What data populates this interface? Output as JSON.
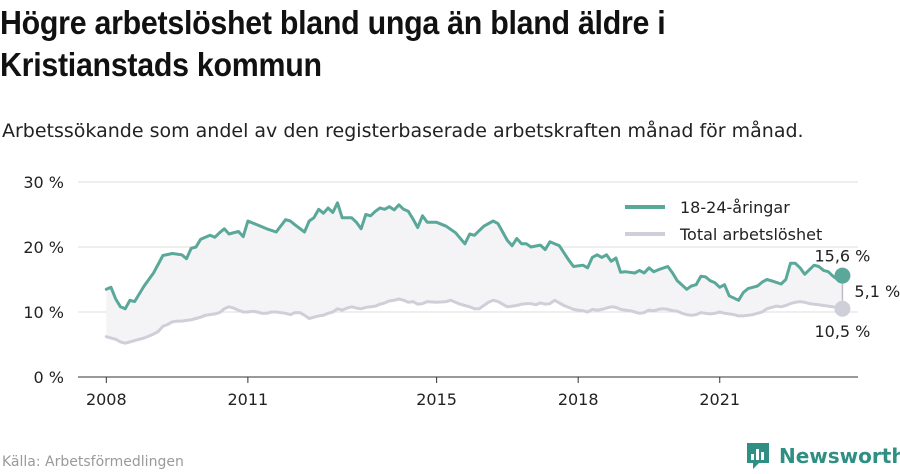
{
  "header": {
    "title": "Högre arbetslöshet bland unga än bland äldre i Kristianstads kommun",
    "subtitle": "Arbetssökande som andel av den registerbaserade arbetskraften månad för månad."
  },
  "footer": {
    "source": "Källa: Arbetsförmedlingen",
    "brand": "Newsworthy"
  },
  "colors": {
    "youth": "#5aa89a",
    "total": "#cfcfd9",
    "fill": "#f4f4f6",
    "brand": "#2e8f82"
  },
  "chart_data": {
    "type": "line",
    "xlabel": "",
    "ylabel": "",
    "ylim": [
      0,
      30
    ],
    "y_ticks": [
      "0 %",
      "10 %",
      "20 %",
      "30 %"
    ],
    "x_ticks": [
      "2008",
      "2011",
      "2015",
      "2018",
      "2021"
    ],
    "grid": true,
    "legend_position": "top-right",
    "series": [
      {
        "name": "18-24-åringar",
        "color": "#5aa89a",
        "points": [
          [
            2008.0,
            13.5
          ],
          [
            2008.1,
            13.8
          ],
          [
            2008.2,
            12.0
          ],
          [
            2008.3,
            10.8
          ],
          [
            2008.4,
            10.5
          ],
          [
            2008.5,
            11.8
          ],
          [
            2008.6,
            11.6
          ],
          [
            2008.8,
            14.0
          ],
          [
            2009.0,
            16.0
          ],
          [
            2009.2,
            18.7
          ],
          [
            2009.4,
            19.0
          ],
          [
            2009.6,
            18.8
          ],
          [
            2009.7,
            18.2
          ],
          [
            2009.8,
            19.8
          ],
          [
            2009.9,
            20.0
          ],
          [
            2010.0,
            21.2
          ],
          [
            2010.2,
            21.8
          ],
          [
            2010.3,
            21.5
          ],
          [
            2010.4,
            22.2
          ],
          [
            2010.5,
            22.8
          ],
          [
            2010.6,
            22.0
          ],
          [
            2010.8,
            22.4
          ],
          [
            2010.9,
            21.6
          ],
          [
            2011.0,
            24.0
          ],
          [
            2011.2,
            23.4
          ],
          [
            2011.4,
            22.8
          ],
          [
            2011.6,
            22.3
          ],
          [
            2011.8,
            24.2
          ],
          [
            2011.9,
            24.0
          ],
          [
            2012.0,
            23.4
          ],
          [
            2012.2,
            22.3
          ],
          [
            2012.3,
            24.0
          ],
          [
            2012.4,
            24.5
          ],
          [
            2012.5,
            25.8
          ],
          [
            2012.6,
            25.2
          ],
          [
            2012.7,
            26.0
          ],
          [
            2012.8,
            25.3
          ],
          [
            2012.9,
            26.8
          ],
          [
            2013.0,
            24.5
          ],
          [
            2013.2,
            24.5
          ],
          [
            2013.3,
            23.8
          ],
          [
            2013.4,
            22.8
          ],
          [
            2013.5,
            25.0
          ],
          [
            2013.6,
            24.8
          ],
          [
            2013.7,
            25.5
          ],
          [
            2013.8,
            26.0
          ],
          [
            2013.9,
            25.8
          ],
          [
            2014.0,
            26.2
          ],
          [
            2014.1,
            25.7
          ],
          [
            2014.2,
            26.5
          ],
          [
            2014.3,
            25.8
          ],
          [
            2014.4,
            25.5
          ],
          [
            2014.5,
            24.3
          ],
          [
            2014.6,
            23.0
          ],
          [
            2014.7,
            24.8
          ],
          [
            2014.8,
            23.8
          ],
          [
            2015.0,
            23.8
          ],
          [
            2015.2,
            23.2
          ],
          [
            2015.4,
            22.2
          ],
          [
            2015.6,
            20.5
          ],
          [
            2015.7,
            22.0
          ],
          [
            2015.8,
            21.8
          ],
          [
            2016.0,
            23.2
          ],
          [
            2016.2,
            24.0
          ],
          [
            2016.3,
            23.6
          ],
          [
            2016.5,
            21.0
          ],
          [
            2016.6,
            20.2
          ],
          [
            2016.7,
            21.3
          ],
          [
            2016.8,
            20.5
          ],
          [
            2016.9,
            20.5
          ],
          [
            2017.0,
            20.0
          ],
          [
            2017.2,
            20.3
          ],
          [
            2017.3,
            19.6
          ],
          [
            2017.4,
            20.8
          ],
          [
            2017.5,
            20.5
          ],
          [
            2017.6,
            20.2
          ],
          [
            2017.8,
            18.0
          ],
          [
            2017.9,
            17.0
          ],
          [
            2018.1,
            17.2
          ],
          [
            2018.2,
            16.8
          ],
          [
            2018.3,
            18.4
          ],
          [
            2018.4,
            18.8
          ],
          [
            2018.5,
            18.4
          ],
          [
            2018.6,
            18.8
          ],
          [
            2018.7,
            17.8
          ],
          [
            2018.8,
            18.3
          ],
          [
            2018.9,
            16.1
          ],
          [
            2019.0,
            16.2
          ],
          [
            2019.2,
            16.0
          ],
          [
            2019.3,
            16.4
          ],
          [
            2019.4,
            16.0
          ],
          [
            2019.5,
            16.8
          ],
          [
            2019.6,
            16.2
          ],
          [
            2019.7,
            16.5
          ],
          [
            2019.9,
            17.0
          ],
          [
            2020.0,
            16.0
          ],
          [
            2020.1,
            14.8
          ],
          [
            2020.3,
            13.5
          ],
          [
            2020.4,
            14.0
          ],
          [
            2020.5,
            14.2
          ],
          [
            2020.6,
            15.5
          ],
          [
            2020.7,
            15.4
          ],
          [
            2020.8,
            14.8
          ],
          [
            2020.9,
            14.5
          ],
          [
            2021.0,
            13.8
          ],
          [
            2021.1,
            14.2
          ],
          [
            2021.2,
            12.5
          ],
          [
            2021.4,
            11.8
          ],
          [
            2021.5,
            13.0
          ],
          [
            2021.6,
            13.6
          ],
          [
            2021.7,
            13.8
          ],
          [
            2021.8,
            14.0
          ],
          [
            2021.9,
            14.6
          ],
          [
            2022.0,
            15.0
          ],
          [
            2022.1,
            14.8
          ],
          [
            2022.3,
            14.3
          ],
          [
            2022.4,
            15.0
          ],
          [
            2022.5,
            17.5
          ],
          [
            2022.6,
            17.5
          ],
          [
            2022.7,
            16.8
          ],
          [
            2022.8,
            15.8
          ],
          [
            2022.9,
            16.5
          ],
          [
            2023.0,
            17.2
          ],
          [
            2023.1,
            17.0
          ],
          [
            2023.2,
            16.4
          ],
          [
            2023.3,
            16.2
          ],
          [
            2023.4,
            15.5
          ],
          [
            2023.5,
            15.0
          ],
          [
            2023.6,
            15.6
          ]
        ]
      },
      {
        "name": "Total arbetslöshet",
        "color": "#cfcfd9",
        "points": [
          [
            2008.0,
            6.2
          ],
          [
            2008.1,
            6.0
          ],
          [
            2008.2,
            5.8
          ],
          [
            2008.3,
            5.4
          ],
          [
            2008.4,
            5.2
          ],
          [
            2008.5,
            5.4
          ],
          [
            2008.6,
            5.6
          ],
          [
            2008.8,
            6.0
          ],
          [
            2008.9,
            6.3
          ],
          [
            2009.0,
            6.6
          ],
          [
            2009.1,
            7.0
          ],
          [
            2009.2,
            7.8
          ],
          [
            2009.3,
            8.1
          ],
          [
            2009.4,
            8.5
          ],
          [
            2009.5,
            8.6
          ],
          [
            2009.6,
            8.6
          ],
          [
            2009.7,
            8.7
          ],
          [
            2009.8,
            8.8
          ],
          [
            2009.9,
            9.0
          ],
          [
            2010.0,
            9.2
          ],
          [
            2010.1,
            9.5
          ],
          [
            2010.2,
            9.6
          ],
          [
            2010.3,
            9.7
          ],
          [
            2010.4,
            9.9
          ],
          [
            2010.5,
            10.5
          ],
          [
            2010.6,
            10.8
          ],
          [
            2010.7,
            10.6
          ],
          [
            2010.8,
            10.3
          ],
          [
            2010.9,
            10.0
          ],
          [
            2011.0,
            10.0
          ],
          [
            2011.1,
            10.1
          ],
          [
            2011.2,
            10.0
          ],
          [
            2011.3,
            9.8
          ],
          [
            2011.4,
            9.8
          ],
          [
            2011.5,
            10.0
          ],
          [
            2011.6,
            10.0
          ],
          [
            2011.8,
            9.8
          ],
          [
            2011.9,
            9.6
          ],
          [
            2012.0,
            9.9
          ],
          [
            2012.1,
            9.9
          ],
          [
            2012.2,
            9.5
          ],
          [
            2012.3,
            9.0
          ],
          [
            2012.4,
            9.2
          ],
          [
            2012.5,
            9.4
          ],
          [
            2012.6,
            9.5
          ],
          [
            2012.7,
            9.8
          ],
          [
            2012.8,
            10.0
          ],
          [
            2012.9,
            10.5
          ],
          [
            2013.0,
            10.3
          ],
          [
            2013.1,
            10.6
          ],
          [
            2013.2,
            10.8
          ],
          [
            2013.3,
            10.6
          ],
          [
            2013.4,
            10.5
          ],
          [
            2013.5,
            10.7
          ],
          [
            2013.6,
            10.8
          ],
          [
            2013.7,
            10.9
          ],
          [
            2013.8,
            11.2
          ],
          [
            2013.9,
            11.4
          ],
          [
            2014.0,
            11.7
          ],
          [
            2014.1,
            11.8
          ],
          [
            2014.2,
            12.0
          ],
          [
            2014.3,
            11.8
          ],
          [
            2014.4,
            11.5
          ],
          [
            2014.5,
            11.6
          ],
          [
            2014.6,
            11.2
          ],
          [
            2014.7,
            11.3
          ],
          [
            2014.8,
            11.6
          ],
          [
            2015.0,
            11.5
          ],
          [
            2015.2,
            11.6
          ],
          [
            2015.3,
            11.8
          ],
          [
            2015.4,
            11.5
          ],
          [
            2015.5,
            11.2
          ],
          [
            2015.6,
            11.0
          ],
          [
            2015.7,
            10.8
          ],
          [
            2015.8,
            10.5
          ],
          [
            2015.9,
            10.5
          ],
          [
            2016.0,
            11.0
          ],
          [
            2016.1,
            11.5
          ],
          [
            2016.2,
            11.8
          ],
          [
            2016.3,
            11.6
          ],
          [
            2016.4,
            11.2
          ],
          [
            2016.5,
            10.8
          ],
          [
            2016.6,
            10.9
          ],
          [
            2016.7,
            11.0
          ],
          [
            2016.8,
            11.2
          ],
          [
            2016.9,
            11.3
          ],
          [
            2017.0,
            11.3
          ],
          [
            2017.1,
            11.1
          ],
          [
            2017.2,
            11.4
          ],
          [
            2017.3,
            11.2
          ],
          [
            2017.4,
            11.3
          ],
          [
            2017.5,
            11.8
          ],
          [
            2017.6,
            11.4
          ],
          [
            2017.7,
            11.0
          ],
          [
            2017.8,
            10.7
          ],
          [
            2017.9,
            10.4
          ],
          [
            2018.0,
            10.3
          ],
          [
            2018.1,
            10.2
          ],
          [
            2018.2,
            10.0
          ],
          [
            2018.3,
            10.4
          ],
          [
            2018.4,
            10.3
          ],
          [
            2018.5,
            10.4
          ],
          [
            2018.6,
            10.6
          ],
          [
            2018.7,
            10.8
          ],
          [
            2018.8,
            10.7
          ],
          [
            2018.9,
            10.4
          ],
          [
            2019.0,
            10.3
          ],
          [
            2019.1,
            10.2
          ],
          [
            2019.2,
            10.0
          ],
          [
            2019.3,
            9.8
          ],
          [
            2019.4,
            9.9
          ],
          [
            2019.5,
            10.3
          ],
          [
            2019.6,
            10.2
          ],
          [
            2019.7,
            10.4
          ],
          [
            2019.8,
            10.5
          ],
          [
            2019.9,
            10.4
          ],
          [
            2020.0,
            10.2
          ],
          [
            2020.1,
            10.1
          ],
          [
            2020.2,
            9.8
          ],
          [
            2020.3,
            9.6
          ],
          [
            2020.4,
            9.5
          ],
          [
            2020.5,
            9.6
          ],
          [
            2020.6,
            9.9
          ],
          [
            2020.7,
            9.8
          ],
          [
            2020.8,
            9.7
          ],
          [
            2020.9,
            9.8
          ],
          [
            2021.0,
            10.0
          ],
          [
            2021.1,
            9.8
          ],
          [
            2021.2,
            9.7
          ],
          [
            2021.3,
            9.6
          ],
          [
            2021.4,
            9.4
          ],
          [
            2021.5,
            9.4
          ],
          [
            2021.6,
            9.5
          ],
          [
            2021.7,
            9.6
          ],
          [
            2021.8,
            9.8
          ],
          [
            2021.9,
            10.0
          ],
          [
            2022.0,
            10.5
          ],
          [
            2022.1,
            10.7
          ],
          [
            2022.2,
            10.9
          ],
          [
            2022.3,
            10.8
          ],
          [
            2022.4,
            11.0
          ],
          [
            2022.5,
            11.3
          ],
          [
            2022.6,
            11.5
          ],
          [
            2022.7,
            11.6
          ],
          [
            2022.8,
            11.5
          ],
          [
            2022.9,
            11.3
          ],
          [
            2023.0,
            11.2
          ],
          [
            2023.1,
            11.1
          ],
          [
            2023.2,
            11.0
          ],
          [
            2023.3,
            10.9
          ],
          [
            2023.4,
            10.8
          ],
          [
            2023.5,
            10.7
          ],
          [
            2023.6,
            10.5
          ]
        ]
      }
    ],
    "annotations": [
      {
        "series": "18-24-åringar",
        "label": "15,6 %"
      },
      {
        "series": "Total arbetslöshet",
        "label": "10,5 %"
      },
      {
        "type": "difference",
        "label": "5,1 %"
      }
    ]
  }
}
